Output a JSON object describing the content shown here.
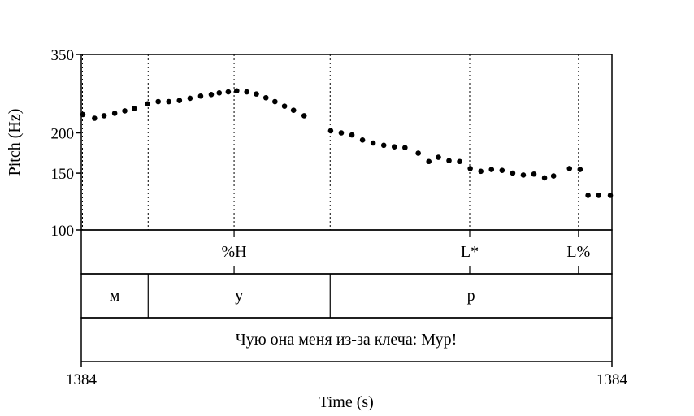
{
  "chart_data": {
    "type": "scatter",
    "xlabel": "Time (s)",
    "ylabel": "Pitch (Hz)",
    "x_start_label": "1384",
    "x_end_label": "1384",
    "y_scale": "log",
    "ylim": [
      100,
      350
    ],
    "y_ticks": [
      "350",
      "200",
      "150",
      "100"
    ],
    "grid": "dotted vertical boundary lines",
    "point_color": "#000000",
    "x_unit_note": "x values as fraction of the time window",
    "points": [
      [
        0.003,
        228
      ],
      [
        0.025,
        222
      ],
      [
        0.043,
        226
      ],
      [
        0.063,
        230
      ],
      [
        0.082,
        234
      ],
      [
        0.1,
        238
      ],
      [
        0.125,
        246
      ],
      [
        0.145,
        250
      ],
      [
        0.165,
        250
      ],
      [
        0.185,
        252
      ],
      [
        0.205,
        256
      ],
      [
        0.225,
        260
      ],
      [
        0.245,
        263
      ],
      [
        0.26,
        266
      ],
      [
        0.277,
        268
      ],
      [
        0.293,
        270
      ],
      [
        0.312,
        268
      ],
      [
        0.33,
        264
      ],
      [
        0.348,
        257
      ],
      [
        0.365,
        250
      ],
      [
        0.383,
        242
      ],
      [
        0.4,
        235
      ],
      [
        0.42,
        226
      ],
      [
        0.47,
        203
      ],
      [
        0.49,
        200
      ],
      [
        0.51,
        197
      ],
      [
        0.53,
        190
      ],
      [
        0.55,
        186
      ],
      [
        0.57,
        183
      ],
      [
        0.59,
        181
      ],
      [
        0.61,
        180
      ],
      [
        0.635,
        173
      ],
      [
        0.655,
        163
      ],
      [
        0.673,
        168
      ],
      [
        0.693,
        164
      ],
      [
        0.713,
        163
      ],
      [
        0.733,
        155
      ],
      [
        0.753,
        152
      ],
      [
        0.773,
        154
      ],
      [
        0.793,
        153
      ],
      [
        0.813,
        150
      ],
      [
        0.833,
        148
      ],
      [
        0.853,
        149
      ],
      [
        0.873,
        145
      ],
      [
        0.89,
        147
      ],
      [
        0.92,
        155
      ],
      [
        0.94,
        154
      ],
      [
        0.955,
        128
      ],
      [
        0.975,
        128
      ],
      [
        0.997,
        128
      ]
    ],
    "boundaries_x": [
      0.126,
      0.288,
      0.469,
      0.732,
      0.937
    ]
  },
  "tiers": {
    "tones": [
      {
        "label": "%H",
        "x": 0.288
      },
      {
        "label": "L*",
        "x": 0.732
      },
      {
        "label": "L%",
        "x": 0.937
      }
    ],
    "segments": [
      {
        "label": "м",
        "start": 0.0,
        "end": 0.126
      },
      {
        "label": "у",
        "start": 0.126,
        "end": 0.469
      },
      {
        "label": "р",
        "start": 0.469,
        "end": 1.0
      }
    ],
    "sentence": "Чую она меня из-за клеча: Мур!"
  }
}
